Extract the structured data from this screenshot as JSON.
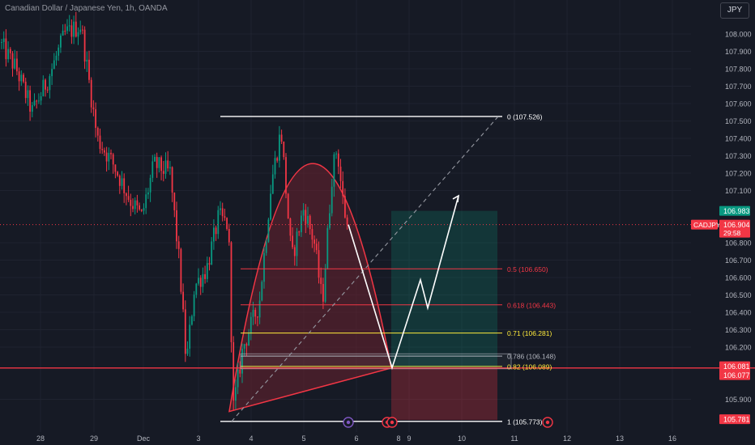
{
  "header": {
    "title": "Canadian Dollar / Japanese Yen, 1h, OANDA",
    "currency_button": "JPY"
  },
  "chart_data": {
    "type": "candlestick",
    "symbol": "CADJPY",
    "timeframe": "1h",
    "x_tick_labels": [
      "28",
      "29",
      "Dec",
      "3",
      "4",
      "5",
      "6",
      "8",
      "9",
      "10",
      "11",
      "12",
      "13",
      "16"
    ],
    "y_tick_labels": [
      "108.000",
      "107.900",
      "107.800",
      "107.700",
      "107.600",
      "107.500",
      "107.400",
      "107.300",
      "107.200",
      "107.100",
      "106.800",
      "106.700",
      "106.600",
      "106.500",
      "106.400",
      "106.300",
      "106.200",
      "105.900"
    ],
    "ylim": [
      105.75,
      108.1
    ],
    "last_price": {
      "symbol": "CADJPY",
      "price": "106.904",
      "countdown": "29:58"
    },
    "price_badges": [
      {
        "value": "106.983",
        "color": "#089981"
      },
      {
        "value": "106.081",
        "color": "#f23645"
      },
      {
        "value": "106.077",
        "color": "#f23645"
      },
      {
        "value": "105.781",
        "color": "#f23645"
      }
    ],
    "fib_levels": [
      {
        "label": "0 (107.526)",
        "price": 107.526,
        "color": "#ffffff"
      },
      {
        "label": "0.5 (106.650)",
        "price": 106.65,
        "color": "#f23645"
      },
      {
        "label": "0.618 (106.443)",
        "price": 106.443,
        "color": "#f23645"
      },
      {
        "label": "0.71 (106.281)",
        "price": 106.281,
        "color": "#ffeb3b"
      },
      {
        "label": "0.786 (106.148)",
        "price": 106.148,
        "color": "#b2b5be"
      },
      {
        "label": "0.82 (106.089)",
        "price": 106.089,
        "color": "#ffeb3b"
      },
      {
        "label": "1 (105.773)",
        "price": 105.773,
        "color": "#ffffff"
      }
    ],
    "support_line_price": 106.08,
    "long_position": {
      "entry": 106.081,
      "target": 106.983,
      "stop": 105.781
    },
    "projection_prices": [
      106.904,
      106.081,
      106.587,
      106.425,
      107.07
    ],
    "dashed_trend_prices": [
      105.773,
      107.526
    ],
    "colors": {
      "background": "#161a25",
      "up": "#089981",
      "down": "#f23645",
      "grid": "#1f2330",
      "axis_text": "#b2b5be",
      "fib_fill": "#6b2330"
    }
  }
}
